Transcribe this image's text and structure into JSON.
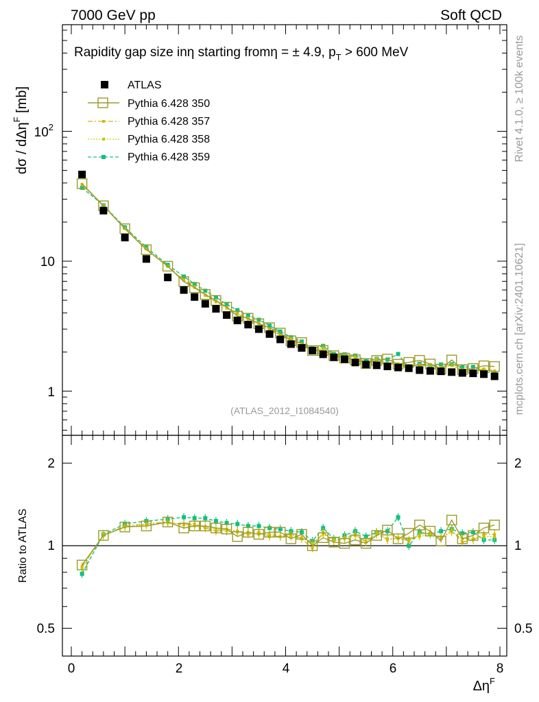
{
  "header": {
    "left": "7000 GeV pp",
    "right": "Soft QCD"
  },
  "side": {
    "rivet": "Rivet 4.1.0, ≥ 100k events",
    "source": "mcplots.cern.ch [arXiv:2401.10621]"
  },
  "analysis_id": "(ATLAS_2012_I1084540)",
  "colors": {
    "atlas": "#000000",
    "p350": "#9a9a2a",
    "p357": "#d6b400",
    "p358": "#b8d010",
    "p359": "#10c080",
    "watermark": "#999999"
  },
  "chart_data": {
    "type": "line",
    "title": "Rapidity gap size inη starting fromη = ± 4.9, p_T > 600 MeV",
    "title_parts": {
      "main": "Rapidity gap size inη starting fromη = ± 4.9, p",
      "sub": "T",
      "tail": " > 600 MeV"
    },
    "xlabel": "Δη",
    "xlabel_sup": "F",
    "ylabel": "dσ / dΔη",
    "ylabel_sup": "F",
    "ylabel_unit": " [mb]",
    "ratio_ylabel": "Ratio to ATLAS",
    "xlim": [
      0,
      8
    ],
    "ylim": [
      0.5,
      700
    ],
    "yscale": "log",
    "ratio_ylim": [
      0.4,
      2.5
    ],
    "x_ticks": [
      "0",
      "2",
      "4",
      "6",
      "8"
    ],
    "y_ticks": {
      "one": "1",
      "ten": "10",
      "hundred_base": "10",
      "hundred_exp": "2"
    },
    "ratio_ticks": [
      "0.5",
      "1",
      "2"
    ],
    "x": [
      0.2,
      0.6,
      1.0,
      1.4,
      1.8,
      2.1,
      2.3,
      2.5,
      2.7,
      2.9,
      3.1,
      3.3,
      3.5,
      3.7,
      3.9,
      4.1,
      4.3,
      4.5,
      4.7,
      4.9,
      5.1,
      5.3,
      5.5,
      5.7,
      5.9,
      6.1,
      6.3,
      6.5,
      6.7,
      6.9,
      7.1,
      7.3,
      7.5,
      7.7,
      7.9
    ],
    "series": [
      {
        "name": "ATLAS",
        "style": "data",
        "values": [
          46.5,
          24.5,
          15.2,
          10.4,
          7.5,
          6.0,
          5.3,
          4.7,
          4.3,
          3.85,
          3.5,
          3.25,
          3.0,
          2.75,
          2.5,
          2.3,
          2.15,
          2.05,
          1.92,
          1.82,
          1.76,
          1.66,
          1.6,
          1.58,
          1.55,
          1.52,
          1.5,
          1.45,
          1.43,
          1.42,
          1.4,
          1.38,
          1.37,
          1.35,
          1.3
        ]
      },
      {
        "name": "Pythia 6.428 350",
        "style": "open-square",
        "ratios": [
          0.85,
          1.09,
          1.17,
          1.18,
          1.22,
          1.16,
          1.18,
          1.18,
          1.16,
          1.15,
          1.08,
          1.12,
          1.1,
          1.12,
          1.12,
          1.06,
          1.1,
          1.0,
          1.07,
          1.03,
          1.02,
          1.05,
          1.02,
          1.09,
          1.14,
          1.06,
          1.11,
          1.19,
          1.13,
          1.04,
          1.24,
          1.06,
          1.09,
          1.16,
          1.19
        ]
      },
      {
        "name": "Pythia 6.428 357",
        "style": "dashdot-small",
        "ratios": [
          0.84,
          1.09,
          1.18,
          1.2,
          1.22,
          1.19,
          1.2,
          1.16,
          1.13,
          1.15,
          1.13,
          1.1,
          1.12,
          1.08,
          1.08,
          1.1,
          1.06,
          0.98,
          1.12,
          1.04,
          1.07,
          1.1,
          1.03,
          1.12,
          1.05,
          1.07,
          1.04,
          1.1,
          1.12,
          1.06,
          1.14,
          1.03,
          1.05,
          1.1,
          1.1
        ]
      },
      {
        "name": "Pythia 6.428 358",
        "style": "dotted-small",
        "ratios": [
          0.83,
          1.1,
          1.17,
          1.19,
          1.21,
          1.2,
          1.18,
          1.17,
          1.15,
          1.13,
          1.12,
          1.12,
          1.1,
          1.1,
          1.08,
          1.08,
          1.07,
          1.02,
          1.1,
          1.05,
          1.06,
          1.09,
          1.04,
          1.1,
          1.06,
          1.06,
          1.05,
          1.08,
          1.1,
          1.07,
          1.12,
          1.06,
          1.06,
          1.08,
          1.08
        ]
      },
      {
        "name": "Pythia 6.428 359",
        "style": "dashed-filled",
        "ratios": [
          0.79,
          1.1,
          1.2,
          1.23,
          1.25,
          1.27,
          1.26,
          1.26,
          1.23,
          1.21,
          1.2,
          1.18,
          1.18,
          1.16,
          1.15,
          1.13,
          1.12,
          1.04,
          1.16,
          1.06,
          1.09,
          1.13,
          1.08,
          1.12,
          1.13,
          1.27,
          1.0,
          1.12,
          1.1,
          1.13,
          1.15,
          1.11,
          1.12,
          1.05,
          1.05
        ]
      }
    ]
  }
}
